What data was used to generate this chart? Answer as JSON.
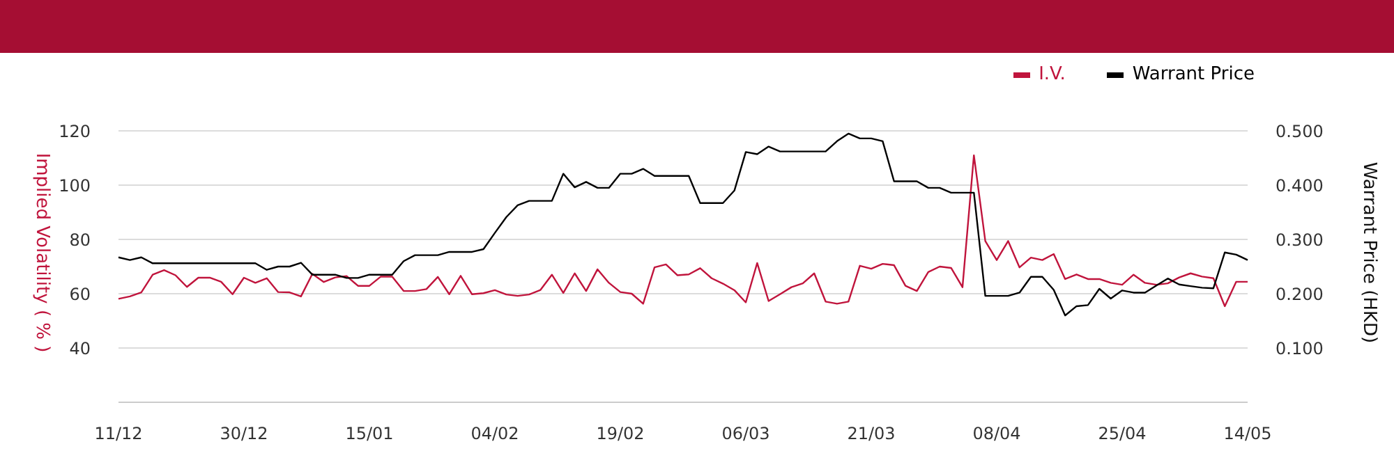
{
  "chart_data": {
    "type": "line",
    "ylabel": "Implied Volatility ( % )",
    "y2label": "Warrant Price (HKD)",
    "categories": [
      "11/12",
      null,
      null,
      null,
      null,
      null,
      null,
      null,
      null,
      null,
      null,
      "30/12",
      null,
      null,
      null,
      null,
      null,
      null,
      null,
      null,
      null,
      null,
      "15/01",
      null,
      null,
      null,
      null,
      null,
      null,
      null,
      null,
      null,
      null,
      "04/02",
      null,
      null,
      null,
      null,
      null,
      null,
      null,
      null,
      null,
      null,
      "19/02",
      null,
      null,
      null,
      null,
      null,
      null,
      null,
      null,
      null,
      null,
      "06/03",
      null,
      null,
      null,
      null,
      null,
      null,
      null,
      null,
      null,
      null,
      "21/03",
      null,
      null,
      null,
      null,
      null,
      null,
      null,
      null,
      null,
      null,
      "08/04",
      null,
      null,
      null,
      null,
      null,
      null,
      null,
      null,
      null,
      null,
      "25/04",
      null,
      null,
      null,
      null,
      null,
      null,
      null,
      null,
      null,
      null,
      "14/05"
    ],
    "series": [
      {
        "name": "I.V.",
        "color": "#c0143c",
        "values": [
          58.1,
          59,
          60.5,
          67,
          68.7,
          66.8,
          62.5,
          65.9,
          65.9,
          64.4,
          59.8,
          65.9,
          64,
          65.7,
          60.6,
          60.5,
          59,
          67.3,
          64.3,
          66,
          66.5,
          62.9,
          62.9,
          66.3,
          66.3,
          61,
          61,
          61.7,
          66.2,
          59.8,
          66.6,
          59.8,
          60.2,
          61.3,
          59.7,
          59.2,
          59.7,
          61.4,
          67,
          60.3,
          67.5,
          61,
          69,
          64,
          60.6,
          60,
          56.3,
          69.7,
          70.8,
          66.8,
          67.1,
          69.4,
          65.7,
          63.7,
          61.3,
          56.8,
          71.3,
          57.3,
          59.8,
          62.4,
          63.8,
          67.5,
          57.1,
          56.3,
          57.1,
          70.3,
          69.2,
          71,
          70.5,
          62.9,
          61,
          68,
          70,
          69.5,
          62.4,
          111,
          79.4,
          72.4,
          79.4,
          69.7,
          73.3,
          72.4,
          74.6,
          65.4,
          67.1,
          65.4,
          65.4,
          64,
          63.3,
          67,
          64,
          63.3,
          63.8,
          66,
          67.5,
          66.3,
          65.7,
          55.4,
          64.4,
          64.4
        ]
      },
      {
        "name": "Warrant Price",
        "color": "#000000",
        "axis": "y2",
        "values": [
          0.267,
          0.262,
          0.267,
          0.256,
          0.256,
          0.256,
          0.256,
          0.256,
          0.256,
          0.256,
          0.256,
          0.256,
          0.256,
          0.244,
          0.25,
          0.25,
          0.257,
          0.235,
          0.235,
          0.235,
          0.229,
          0.229,
          0.235,
          0.235,
          0.235,
          0.26,
          0.271,
          0.271,
          0.271,
          0.277,
          0.277,
          0.277,
          0.282,
          0.312,
          0.341,
          0.363,
          0.371,
          0.371,
          0.371,
          0.421,
          0.396,
          0.406,
          0.395,
          0.395,
          0.421,
          0.421,
          0.43,
          0.417,
          0.417,
          0.417,
          0.417,
          0.367,
          0.367,
          0.367,
          0.39,
          0.461,
          0.457,
          0.471,
          0.462,
          0.462,
          0.462,
          0.462,
          0.462,
          0.481,
          0.495,
          0.486,
          0.486,
          0.481,
          0.407,
          0.407,
          0.407,
          0.395,
          0.395,
          0.386,
          0.386,
          0.386,
          0.196,
          0.196,
          0.196,
          0.202,
          0.231,
          0.231,
          0.207,
          0.16,
          0.177,
          0.179,
          0.209,
          0.191,
          0.206,
          0.202,
          0.202,
          0.215,
          0.228,
          0.217,
          0.214,
          0.211,
          0.21,
          0.276,
          0.272,
          0.262
        ]
      }
    ],
    "ylim": [
      20,
      120
    ],
    "yticks": [
      40,
      60,
      80,
      100,
      120
    ],
    "y2lim": [
      0,
      0.5
    ],
    "y2ticks": [
      {
        "value": 0.1,
        "label": "0.100"
      },
      {
        "value": 0.2,
        "label": "0.200"
      },
      {
        "value": 0.3,
        "label": "0.300"
      },
      {
        "value": 0.4,
        "label": "0.400"
      },
      {
        "value": 0.5,
        "label": "0.500"
      }
    ],
    "grid": "y",
    "legend": "top right"
  }
}
